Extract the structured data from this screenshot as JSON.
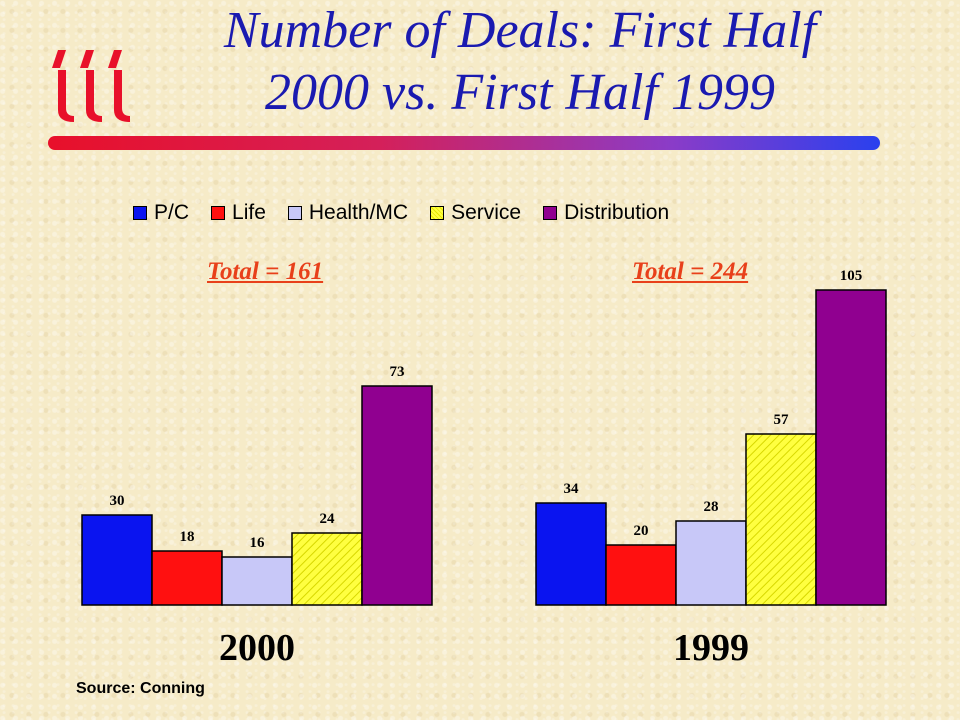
{
  "title_line1": "Number of Deals: First Half",
  "title_line2": "2000 vs. First Half 1999",
  "logo": {
    "icon": "iii-logo-icon",
    "color": "#e8102a"
  },
  "source": "Source: Conning",
  "chart_data": [
    {
      "type": "bar",
      "category": "2000",
      "total_label": "Total = 161",
      "series": [
        {
          "name": "P/C",
          "value": 30
        },
        {
          "name": "Life",
          "value": 18
        },
        {
          "name": "Health/MC",
          "value": 16
        },
        {
          "name": "Service",
          "value": 24
        },
        {
          "name": "Distribution",
          "value": 73
        }
      ]
    },
    {
      "type": "bar",
      "category": "1999",
      "total_label": "Total = 244",
      "series": [
        {
          "name": "P/C",
          "value": 34
        },
        {
          "name": "Life",
          "value": 20
        },
        {
          "name": "Health/MC",
          "value": 28
        },
        {
          "name": "Service",
          "value": 57
        },
        {
          "name": "Distribution",
          "value": 105
        }
      ]
    }
  ],
  "legend": [
    {
      "name": "P/C",
      "color": "#0a14f0"
    },
    {
      "name": "Life",
      "color": "#ff1010"
    },
    {
      "name": "Health/MC",
      "color": "#c8c8f8"
    },
    {
      "name": "Service",
      "color": "#ffff40"
    },
    {
      "name": "Distribution",
      "color": "#900090"
    }
  ]
}
